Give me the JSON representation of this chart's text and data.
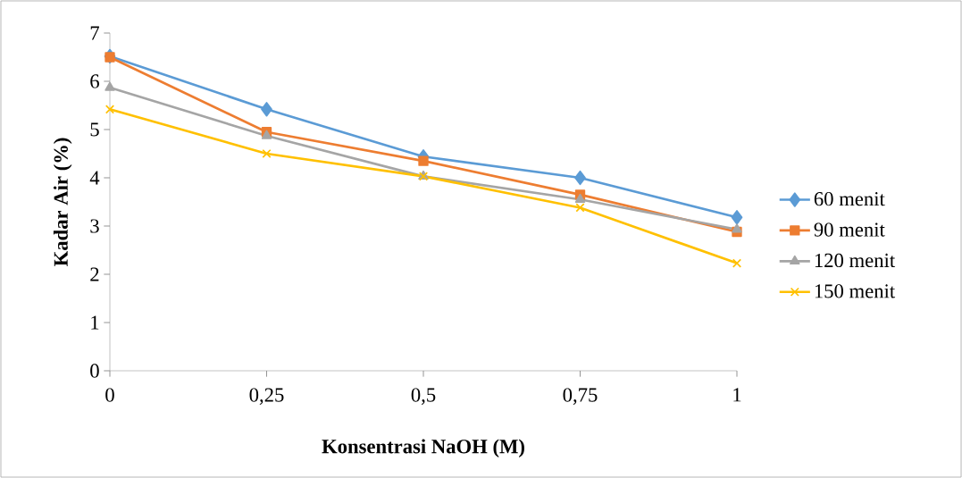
{
  "chart_data": {
    "type": "line",
    "xlabel": "Konsentrasi NaOH (M)",
    "ylabel": "Kadar Air (%)",
    "categories": [
      "0",
      "0,25",
      "0,5",
      "0,75",
      "1"
    ],
    "series": [
      {
        "name": "60 menit",
        "color": "#5b9bd5",
        "marker": "diamond",
        "values": [
          6.52,
          5.42,
          4.44,
          4.0,
          3.18
        ]
      },
      {
        "name": "90 menit",
        "color": "#ed7d31",
        "marker": "square",
        "values": [
          6.5,
          4.95,
          4.35,
          3.65,
          2.88
        ]
      },
      {
        "name": "120 menit",
        "color": "#a5a5a5",
        "marker": "triangle",
        "values": [
          5.87,
          4.87,
          4.03,
          3.55,
          2.93
        ]
      },
      {
        "name": "150 menit",
        "color": "#ffc000",
        "marker": "cross",
        "values": [
          5.42,
          4.5,
          4.03,
          3.38,
          2.23
        ]
      }
    ],
    "ylim": [
      0,
      7
    ],
    "yticks": [
      0,
      1,
      2,
      3,
      4,
      5,
      6,
      7
    ],
    "legend": "right"
  }
}
